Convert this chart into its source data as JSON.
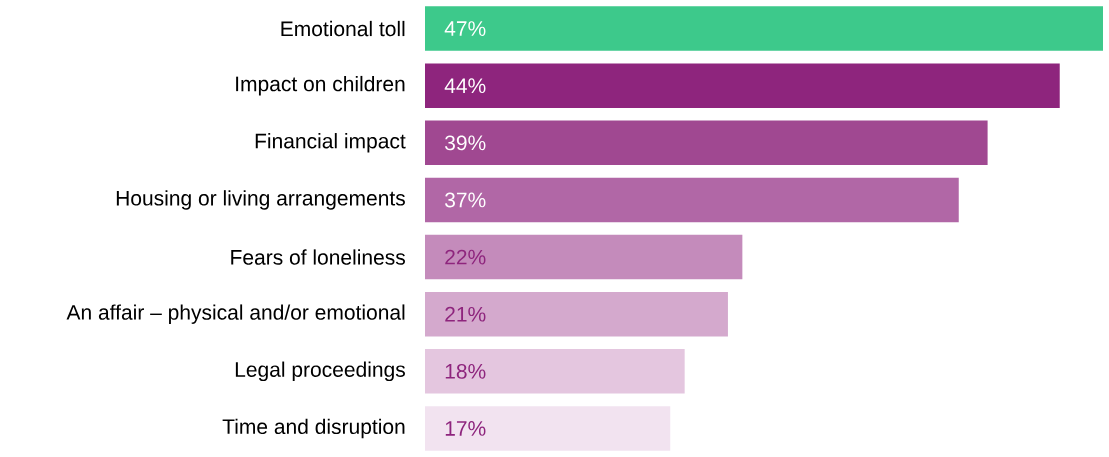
{
  "chart_data": {
    "type": "bar",
    "orientation": "horizontal",
    "categories": [
      "Emotional toll",
      "Impact on children",
      "Financial impact",
      "Housing or living arrangements",
      "Fears of loneliness",
      "An affair – physical and/or emotional",
      "Legal proceedings",
      "Time and disruption"
    ],
    "values": [
      47,
      44,
      39,
      37,
      22,
      21,
      18,
      17
    ],
    "colors": [
      "#3dc98b",
      "#8e257d",
      "#a04891",
      "#b167a6",
      "#c48bbb",
      "#d4a9cd",
      "#e4c6df",
      "#f2e3f0"
    ],
    "value_labels": [
      "47%",
      "44%",
      "39%",
      "37%",
      "22%",
      "21%",
      "18%",
      "17%"
    ]
  }
}
